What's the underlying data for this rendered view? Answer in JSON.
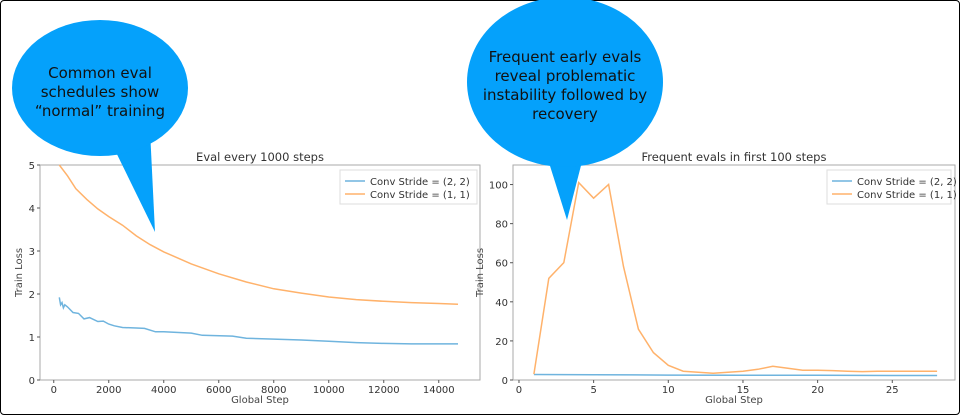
{
  "colors": {
    "blue": "#6fb4de",
    "orange": "#ffb26b",
    "bubble": "#05a1fb"
  },
  "annotations": [
    {
      "lines": [
        "Common eval",
        "schedules show",
        "“normal” training"
      ]
    },
    {
      "lines": [
        "Frequent early evals",
        "reveal problematic",
        "instability followed by",
        "recovery"
      ]
    }
  ],
  "chart_data": [
    {
      "type": "line",
      "title": "Eval every 1000 steps",
      "xlabel": "Global Step",
      "ylabel": "Train Loss",
      "xlim": [
        -500,
        15500
      ],
      "ylim": [
        0,
        5
      ],
      "xticks": [
        0,
        2000,
        4000,
        6000,
        8000,
        10000,
        12000,
        14000
      ],
      "yticks": [
        0,
        1,
        2,
        3,
        4,
        5
      ],
      "grid": false,
      "legend": "top-right",
      "series": [
        {
          "name": "Conv Stride =  (2, 2)",
          "color": "blue",
          "x": [
            200,
            250,
            300,
            350,
            400,
            500,
            700,
            900,
            1100,
            1300,
            1600,
            1800,
            2000,
            2200,
            2500,
            3000,
            3300,
            3700,
            4000,
            5000,
            5400,
            6500,
            7000,
            8000,
            9000,
            10000,
            11000,
            12000,
            13000,
            14700
          ],
          "y": [
            1.92,
            1.75,
            1.8,
            1.68,
            1.75,
            1.7,
            1.57,
            1.55,
            1.42,
            1.45,
            1.36,
            1.37,
            1.3,
            1.26,
            1.22,
            1.21,
            1.2,
            1.12,
            1.12,
            1.09,
            1.04,
            1.02,
            0.97,
            0.95,
            0.93,
            0.9,
            0.87,
            0.85,
            0.84,
            0.84
          ]
        },
        {
          "name": "Conv Stride =  (1, 1)",
          "color": "orange",
          "x": [
            200,
            500,
            800,
            1200,
            1600,
            2000,
            2500,
            3000,
            3500,
            4000,
            5000,
            6000,
            7000,
            8000,
            9000,
            10000,
            11000,
            12000,
            13000,
            14000,
            14700
          ],
          "y": [
            5.0,
            4.75,
            4.45,
            4.2,
            3.98,
            3.8,
            3.6,
            3.35,
            3.15,
            2.98,
            2.7,
            2.47,
            2.28,
            2.12,
            2.02,
            1.93,
            1.87,
            1.83,
            1.8,
            1.78,
            1.76
          ]
        }
      ]
    },
    {
      "type": "line",
      "title": "Frequent evals in first 100 steps",
      "xlabel": "Global Step",
      "ylabel": "Train Loss",
      "xlim": [
        -0.4,
        29.2
      ],
      "ylim": [
        0,
        110
      ],
      "xticks": [
        0,
        5,
        10,
        15,
        20,
        25
      ],
      "yticks": [
        0,
        20,
        40,
        60,
        80,
        100
      ],
      "grid": false,
      "legend": "top-right",
      "series": [
        {
          "name": "Conv Stride =  (2, 2)",
          "color": "blue",
          "x": [
            1,
            5,
            10,
            15,
            20,
            25,
            28
          ],
          "y": [
            2.8,
            2.7,
            2.5,
            2.4,
            2.4,
            2.3,
            2.3
          ]
        },
        {
          "name": "Conv Stride =  (1, 1)",
          "color": "orange",
          "x": [
            1,
            2,
            3,
            4,
            5,
            6,
            7,
            8,
            9,
            10,
            11,
            12,
            13,
            14,
            15,
            16,
            17,
            18,
            19,
            20,
            21,
            22,
            23,
            24,
            25,
            26,
            27,
            28
          ],
          "y": [
            3,
            52,
            60,
            101,
            93,
            100,
            58,
            26,
            14,
            7.5,
            4.5,
            4,
            3.5,
            4,
            4.5,
            5.5,
            7,
            6,
            5,
            5,
            4.8,
            4.5,
            4.3,
            4.5,
            4.5,
            4.5,
            4.5,
            4.5
          ]
        }
      ]
    }
  ]
}
